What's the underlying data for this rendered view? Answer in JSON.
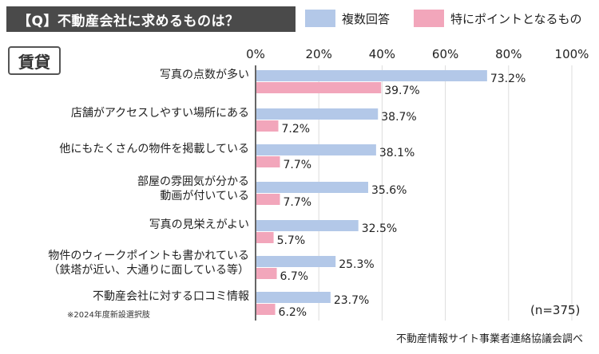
{
  "header": {
    "title": "【Q】不動産会社に求めるものは？",
    "section_tag": "賃貸"
  },
  "legend": {
    "series1_label": "複数回答",
    "series2_label": "特にポイントとなるもの"
  },
  "colors": {
    "series1": "#b3c8e8",
    "series2": "#f2a6bb"
  },
  "chart_data": {
    "type": "bar",
    "orientation": "horizontal",
    "xlim": [
      0,
      100
    ],
    "x_ticks": [
      "0%",
      "20%",
      "40%",
      "60%",
      "80%",
      "100%"
    ],
    "categories": [
      [
        "写真の点数が多い"
      ],
      [
        "店舗がアクセスしやすい場所にある"
      ],
      [
        "他にもたくさんの物件を掲載している"
      ],
      [
        "部屋の雰囲気が分かる",
        "動画が付いている"
      ],
      [
        "写真の見栄えがよい"
      ],
      [
        "物件のウィークポイントも書かれている",
        "（鉄塔が近い、大通りに面している等）"
      ],
      [
        "不動産会社に対する口コミ情報"
      ]
    ],
    "series": [
      {
        "name": "複数回答",
        "values": [
          73.2,
          38.7,
          38.1,
          35.6,
          32.5,
          25.3,
          23.7
        ]
      },
      {
        "name": "特にポイントとなるもの",
        "values": [
          39.7,
          7.2,
          7.7,
          7.7,
          5.7,
          6.7,
          6.2
        ]
      }
    ],
    "value_suffix": "%",
    "footnote": "※2024年度新設選択肢",
    "n_label": "(n=375)",
    "source": "不動産情報サイト事業者連絡協議会調べ"
  }
}
